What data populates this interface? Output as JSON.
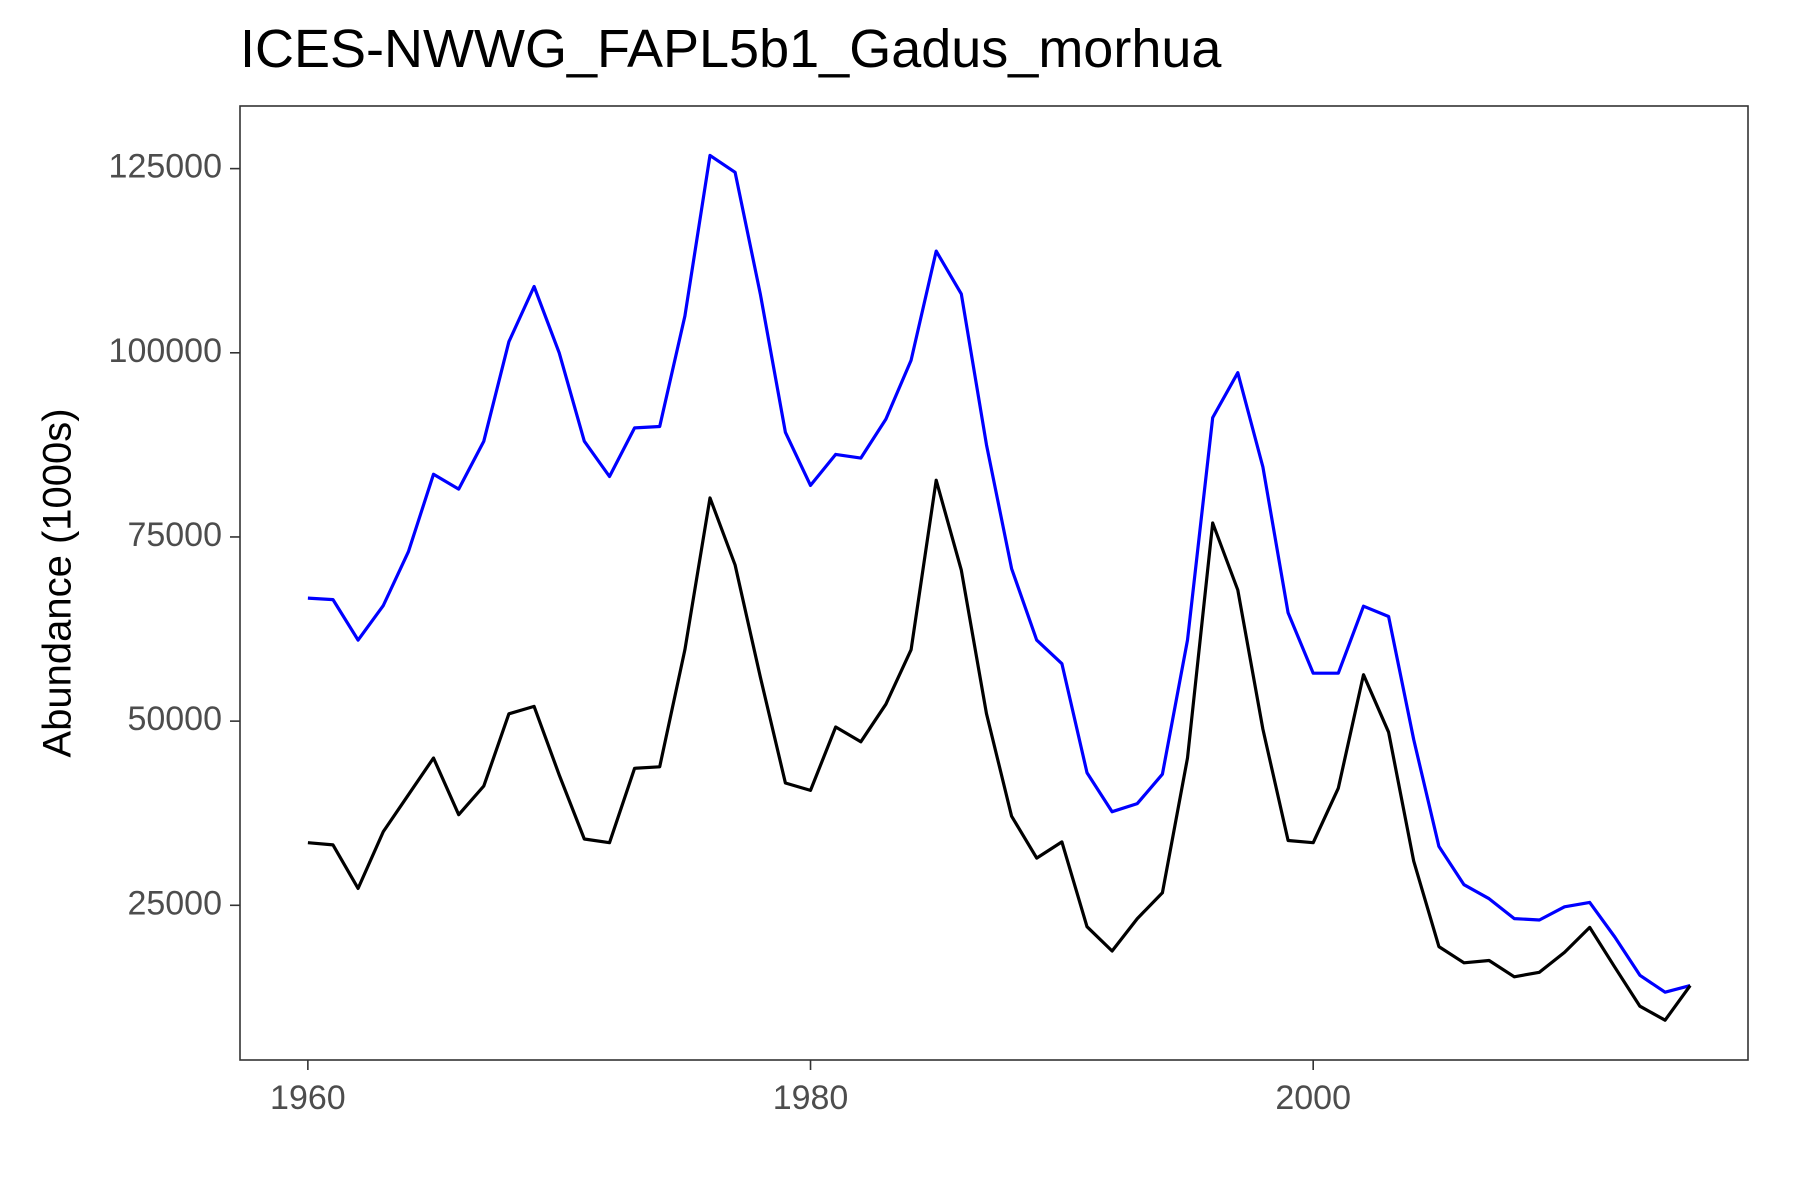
{
  "chart_data": {
    "type": "line",
    "title": "ICES-NWWG_FAPL5b1_Gadus_morhua",
    "xlabel": "",
    "ylabel": "Abundance (1000s)",
    "xlim": [
      1957.3,
      2017.3
    ],
    "ylim": [
      4000,
      133500
    ],
    "x_ticks": [
      1960,
      1980,
      2000
    ],
    "y_ticks": [
      25000,
      50000,
      75000,
      100000,
      125000
    ],
    "grid": false,
    "legend": "none",
    "x": [
      1960,
      1961,
      1962,
      1963,
      1964,
      1965,
      1966,
      1967,
      1968,
      1969,
      1970,
      1971,
      1972,
      1973,
      1974,
      1975,
      1976,
      1977,
      1978,
      1979,
      1980,
      1981,
      1982,
      1983,
      1984,
      1985,
      1986,
      1987,
      1988,
      1989,
      1990,
      1991,
      1992,
      1993,
      1994,
      1995,
      1996,
      1997,
      1998,
      1999,
      2000,
      2001,
      2002,
      2003,
      2004,
      2005,
      2006,
      2007,
      2008,
      2009,
      2010,
      2011,
      2012,
      2013,
      2014,
      2015
    ],
    "series": [
      {
        "color": "#0000ff",
        "values": [
          66700,
          66500,
          61000,
          65700,
          73000,
          83500,
          81500,
          88000,
          101500,
          109000,
          100000,
          88000,
          83200,
          89800,
          90000,
          105000,
          126800,
          124500,
          108000,
          89200,
          82000,
          86200,
          85700,
          91000,
          99000,
          113800,
          108000,
          87500,
          70700,
          61000,
          57800,
          43000,
          37700,
          38800,
          42800,
          61000,
          91200,
          97300,
          84500,
          64700,
          56500,
          56500,
          65600,
          64200,
          47500,
          33000,
          27800,
          25900,
          23200,
          23000,
          24800,
          25400,
          20700,
          15500,
          13200,
          14100
        ]
      },
      {
        "color": "#000000",
        "values": [
          33500,
          33200,
          27300,
          35000,
          40000,
          45000,
          37300,
          41200,
          51000,
          52000,
          42700,
          34000,
          33500,
          43600,
          43800,
          59700,
          80300,
          71200,
          56000,
          41600,
          40600,
          49200,
          47200,
          52300,
          59700,
          82700,
          70500,
          51000,
          37100,
          31400,
          33600,
          22100,
          18800,
          23200,
          26700,
          45000,
          76900,
          67800,
          48900,
          33800,
          33500,
          40900,
          56300,
          48500,
          31000,
          19400,
          17200,
          17500,
          15300,
          15900,
          18600,
          22000,
          16600,
          11300,
          9400,
          14100
        ]
      }
    ]
  }
}
